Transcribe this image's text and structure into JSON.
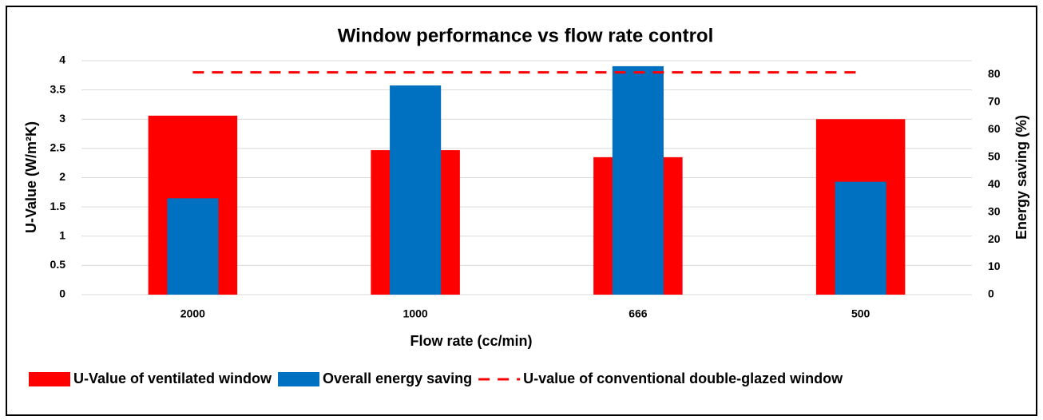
{
  "chart_data": {
    "type": "bar",
    "title": "Window performance vs flow rate control",
    "x_label": "Flow rate (cc/min)",
    "y_label": "U-Value (W/m²K)",
    "y2_label": "Energy saving (%)",
    "categories": [
      "2000",
      "1000",
      "666",
      "500"
    ],
    "series": [
      {
        "name": "U-Value of ventilated window",
        "type": "bar",
        "color": "#ff0000",
        "values": [
          3.06,
          2.47,
          2.35,
          3.0
        ]
      },
      {
        "name": "Overall energy saving",
        "type": "bar",
        "axis": "y2",
        "color": "#0070c0",
        "values": [
          35,
          76,
          83,
          41
        ]
      },
      {
        "name": "U-value of conventional double-glazed window",
        "type": "line",
        "dashed": true,
        "color": "#ff0000",
        "values": [
          3.8,
          3.8,
          3.8,
          3.8
        ]
      }
    ],
    "ylim": [
      0,
      4
    ],
    "yticks": [
      0,
      0.5,
      1,
      1.5,
      2,
      2.5,
      3,
      3.5,
      4
    ],
    "y2lim": [
      0,
      85
    ],
    "y2ticks": [
      0,
      10,
      20,
      30,
      40,
      50,
      60,
      70,
      80
    ],
    "grid": true,
    "legend": "bottom"
  }
}
